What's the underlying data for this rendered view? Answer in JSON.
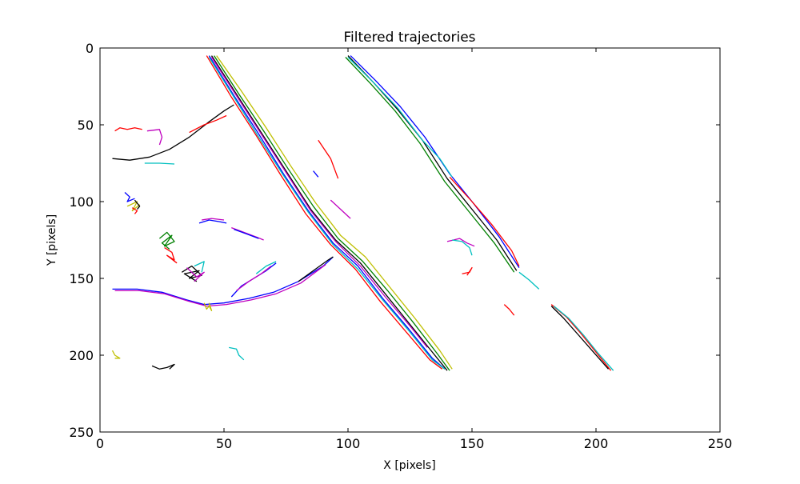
{
  "chart_data": {
    "type": "line",
    "title": "Filtered trajectories",
    "xlabel": "X [pixels]",
    "ylabel": "Y [pixels]",
    "xlim": [
      0,
      250
    ],
    "ylim": [
      250,
      0
    ],
    "y_inverted": true,
    "xticks": [
      "0",
      "50",
      "100",
      "150",
      "200",
      "250"
    ],
    "yticks": [
      "0",
      "50",
      "100",
      "150",
      "200",
      "250"
    ],
    "grid": false,
    "legend": "none",
    "colors": [
      "#0000ff",
      "#008000",
      "#ff0000",
      "#00bfbf",
      "#bf00bf",
      "#bfbf00",
      "#000000"
    ],
    "series": [
      {
        "color": "#000000",
        "x": [
          45,
          55,
          65,
          75,
          85,
          95,
          105,
          115,
          125,
          135,
          140
        ],
        "y": [
          5,
          30,
          55,
          80,
          105,
          125,
          140,
          160,
          180,
          200,
          210
        ]
      },
      {
        "color": "#0000ff",
        "x": [
          44,
          54,
          64,
          74,
          84,
          94,
          104,
          114,
          124,
          134,
          139
        ],
        "y": [
          5,
          31,
          56,
          82,
          106,
          127,
          142,
          163,
          182,
          202,
          209
        ]
      },
      {
        "color": "#008000",
        "x": [
          46,
          56,
          66,
          76,
          86,
          96,
          106,
          116,
          126,
          136,
          141
        ],
        "y": [
          5,
          30,
          54,
          79,
          103,
          124,
          139,
          158,
          178,
          199,
          210
        ]
      },
      {
        "color": "#ff0000",
        "x": [
          43,
          53,
          63,
          73,
          83,
          93,
          103,
          113,
          123,
          133,
          138
        ],
        "y": [
          5,
          32,
          57,
          83,
          108,
          128,
          144,
          165,
          184,
          203,
          209
        ]
      },
      {
        "color": "#bfbf00",
        "x": [
          47,
          57,
          67,
          77,
          87,
          97,
          107,
          117,
          127,
          137,
          142
        ],
        "y": [
          5,
          28,
          52,
          77,
          101,
          122,
          136,
          156,
          176,
          197,
          209
        ]
      },
      {
        "color": "#bf00bf",
        "x": [
          45,
          55,
          65,
          75,
          85,
          95,
          105,
          115,
          125,
          132
        ],
        "y": [
          6,
          31,
          56,
          81,
          106,
          126,
          142,
          162,
          181,
          195
        ]
      },
      {
        "color": "#00bfbf",
        "x": [
          44,
          54,
          64,
          74,
          84,
          94,
          104,
          114,
          124,
          134,
          139
        ],
        "y": [
          6,
          32,
          58,
          83,
          107,
          128,
          144,
          164,
          183,
          203,
          209
        ]
      },
      {
        "color": "#000000",
        "x": [
          100,
          110,
          120,
          130,
          140,
          150,
          160,
          168
        ],
        "y": [
          5,
          22,
          40,
          60,
          85,
          105,
          125,
          145
        ]
      },
      {
        "color": "#0000ff",
        "x": [
          101,
          111,
          121,
          131,
          141,
          151,
          161,
          169
        ],
        "y": [
          5,
          21,
          38,
          58,
          82,
          102,
          123,
          143
        ]
      },
      {
        "color": "#008000",
        "x": [
          99,
          109,
          119,
          129,
          139,
          149,
          159,
          167
        ],
        "y": [
          6,
          23,
          41,
          62,
          87,
          107,
          127,
          146
        ]
      },
      {
        "color": "#00bfbf",
        "x": [
          100,
          110,
          120,
          130,
          137,
          142
        ],
        "y": [
          6,
          22,
          39,
          60,
          72,
          84
        ]
      },
      {
        "color": "#ff0000",
        "x": [
          141,
          150,
          158,
          166,
          169
        ],
        "y": [
          84,
          100,
          115,
          132,
          142
        ]
      },
      {
        "color": "#00bfbf",
        "x": [
          169,
          173,
          177
        ],
        "y": [
          146,
          151,
          157
        ]
      },
      {
        "color": "#ff0000",
        "x": [
          182,
          188,
          194,
          200,
          206
        ],
        "y": [
          167,
          175,
          186,
          198,
          210
        ]
      },
      {
        "color": "#00bfbf",
        "x": [
          183,
          189,
          195,
          201,
          207
        ],
        "y": [
          168,
          176,
          187,
          199,
          210
        ]
      },
      {
        "color": "#000000",
        "x": [
          182,
          187,
          193,
          199,
          205
        ],
        "y": [
          168,
          176,
          187,
          198,
          209
        ]
      },
      {
        "color": "#ff0000",
        "x": [
          163,
          165,
          167
        ],
        "y": [
          167,
          170,
          174
        ]
      },
      {
        "color": "#000000",
        "x": [
          5,
          12,
          20,
          28,
          36,
          44,
          50,
          54
        ],
        "y": [
          72,
          73,
          71,
          66,
          58,
          48,
          41,
          37
        ]
      },
      {
        "color": "#ff0000",
        "x": [
          36,
          42,
          47,
          51
        ],
        "y": [
          55,
          50,
          47,
          44
        ]
      },
      {
        "color": "#00bfbf",
        "x": [
          18,
          24,
          30
        ],
        "y": [
          75,
          75,
          75.5
        ]
      },
      {
        "color": "#ff0000",
        "x": [
          6,
          8,
          11,
          14,
          17
        ],
        "y": [
          54,
          52,
          53,
          52,
          53
        ]
      },
      {
        "color": "#bf00bf",
        "x": [
          19,
          24,
          25,
          24
        ],
        "y": [
          54,
          53,
          58,
          63
        ]
      },
      {
        "color": "#0000ff",
        "x": [
          5,
          15,
          25,
          35,
          42,
          50,
          60,
          70,
          80,
          90,
          94
        ],
        "y": [
          157,
          157,
          159,
          164,
          167,
          166,
          163,
          159,
          152,
          142,
          136
        ]
      },
      {
        "color": "#bf00bf",
        "x": [
          6,
          16,
          26,
          36,
          43,
          51,
          61,
          71,
          81,
          91
        ],
        "y": [
          158,
          158,
          160,
          165,
          168,
          167,
          164,
          160,
          153,
          141
        ]
      },
      {
        "color": "#000000",
        "x": [
          80,
          86,
          92,
          94
        ],
        "y": [
          152,
          145,
          138,
          136
        ]
      },
      {
        "color": "#bfbf00",
        "x": [
          42,
          43,
          44,
          45,
          44
        ],
        "y": [
          166,
          170,
          168,
          171,
          166
        ]
      },
      {
        "color": "#0000ff",
        "x": [
          53,
          57,
          62,
          67,
          71
        ],
        "y": [
          162,
          155,
          150,
          145,
          140
        ]
      },
      {
        "color": "#bf00bf",
        "x": [
          55,
          60,
          65,
          69
        ],
        "y": [
          158,
          152,
          147,
          142
        ]
      },
      {
        "color": "#00bfbf",
        "x": [
          63,
          67,
          71
        ],
        "y": [
          147,
          142,
          139
        ]
      },
      {
        "color": "#0000ff",
        "x": [
          40,
          44,
          48,
          51
        ],
        "y": [
          114,
          112,
          113,
          114
        ]
      },
      {
        "color": "#bf00bf",
        "x": [
          41,
          45,
          50
        ],
        "y": [
          112,
          111,
          112
        ]
      },
      {
        "color": "#bf00bf",
        "x": [
          53,
          58,
          63,
          66
        ],
        "y": [
          117,
          120,
          123,
          125
        ]
      },
      {
        "color": "#0000ff",
        "x": [
          54,
          59,
          64
        ],
        "y": [
          118,
          121,
          124
        ]
      },
      {
        "color": "#008000",
        "x": [
          24,
          27,
          30,
          26,
          29,
          25,
          28
        ],
        "y": [
          124,
          120,
          126,
          129,
          122,
          127,
          131
        ]
      },
      {
        "color": "#ff0000",
        "x": [
          26,
          29,
          30,
          27,
          31
        ],
        "y": [
          130,
          133,
          138,
          135,
          140
        ]
      },
      {
        "color": "#000000",
        "x": [
          33,
          37,
          41,
          36,
          40,
          34,
          39
        ],
        "y": [
          146,
          142,
          148,
          150,
          145,
          147,
          152
        ]
      },
      {
        "color": "#bf00bf",
        "x": [
          35,
          39,
          42,
          38
        ],
        "y": [
          143,
          149,
          146,
          152
        ]
      },
      {
        "color": "#00bfbf",
        "x": [
          38,
          42,
          41
        ],
        "y": [
          142,
          139,
          146
        ]
      },
      {
        "color": "#0000ff",
        "x": [
          10,
          12,
          11,
          14
        ],
        "y": [
          94,
          97,
          100,
          98
        ]
      },
      {
        "color": "#bfbf00",
        "x": [
          11,
          15,
          13,
          16
        ],
        "y": [
          103,
          100,
          106,
          102
        ]
      },
      {
        "color": "#000000",
        "x": [
          14,
          16,
          15
        ],
        "y": [
          99,
          103,
          105
        ]
      },
      {
        "color": "#ff0000",
        "x": [
          13,
          15,
          14
        ],
        "y": [
          104,
          106,
          108
        ]
      },
      {
        "color": "#bf00bf",
        "x": [
          140,
          145,
          148,
          151
        ],
        "y": [
          126,
          124,
          127,
          129
        ]
      },
      {
        "color": "#00bfbf",
        "x": [
          142,
          146,
          149,
          150
        ],
        "y": [
          125,
          126,
          130,
          135
        ]
      },
      {
        "color": "#ff0000",
        "x": [
          146,
          149,
          150,
          148
        ],
        "y": [
          147,
          146,
          143,
          148
        ]
      },
      {
        "color": "#00bfbf",
        "x": [
          52,
          55,
          56,
          58
        ],
        "y": [
          195,
          196,
          200,
          203
        ]
      },
      {
        "color": "#bfbf00",
        "x": [
          5,
          6,
          8,
          6
        ],
        "y": [
          197,
          200,
          202,
          202
        ]
      },
      {
        "color": "#000000",
        "x": [
          21,
          24,
          27,
          30,
          28
        ],
        "y": [
          207,
          209,
          208,
          206,
          209
        ]
      },
      {
        "color": "#ff0000",
        "x": [
          88,
          93,
          96
        ],
        "y": [
          60,
          72,
          85
        ]
      },
      {
        "color": "#0000ff",
        "x": [
          86,
          88
        ],
        "y": [
          80,
          84
        ]
      },
      {
        "color": "#bf00bf",
        "x": [
          93,
          101
        ],
        "y": [
          99,
          111
        ]
      }
    ]
  }
}
